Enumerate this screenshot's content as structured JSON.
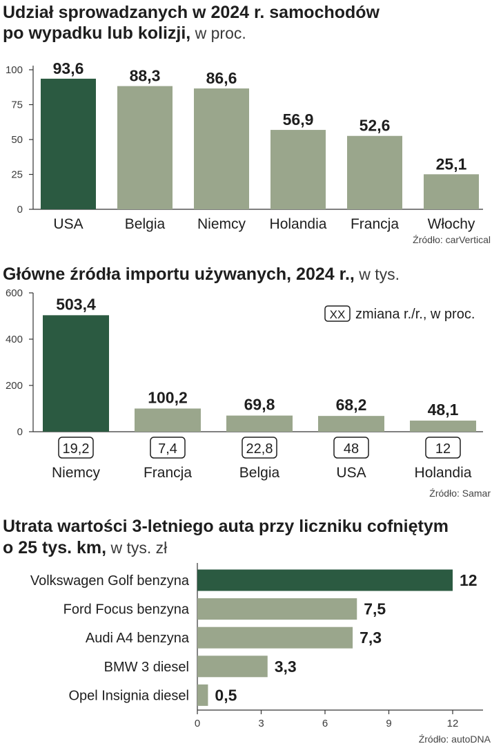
{
  "colors": {
    "highlight": "#2b5a41",
    "bar": "#9aa68c",
    "axis": "#333333"
  },
  "chart_data": [
    {
      "type": "bar",
      "title": "Udział sprowadzanych w 2024 r. samochodów",
      "title_line2": "po wypadku lub kolizji,",
      "unit": " w proc.",
      "categories": [
        "USA",
        "Belgia",
        "Niemcy",
        "Holandia",
        "Francja",
        "Włochy"
      ],
      "values": [
        93.6,
        88.3,
        86.6,
        56.9,
        52.6,
        25.1
      ],
      "value_labels": [
        "93,6",
        "88,3",
        "86,6",
        "56,9",
        "52,6",
        "25,1"
      ],
      "yticks": [
        "0",
        "25",
        "50",
        "75",
        "100"
      ],
      "ylim": [
        0,
        100
      ],
      "highlight_index": 0,
      "source": "Źródło: carVertical"
    },
    {
      "type": "bar",
      "title": "Główne źródła importu używanych, 2024 r.,",
      "unit": " w tys.",
      "legend": "zmiana r./r., w proc.",
      "legend_box": "XX",
      "categories": [
        "Niemcy",
        "Francja",
        "Belgia",
        "USA",
        "Holandia"
      ],
      "values": [
        503.4,
        100.2,
        69.8,
        68.2,
        48.1
      ],
      "value_labels": [
        "503,4",
        "100,2",
        "69,8",
        "68,2",
        "48,1"
      ],
      "changes": [
        "19,2",
        "7,4",
        "22,8",
        "48",
        "12"
      ],
      "yticks": [
        "0",
        "200",
        "400",
        "600"
      ],
      "ylim": [
        0,
        600
      ],
      "highlight_index": 0,
      "source": "Źródło: Samar"
    },
    {
      "type": "bar",
      "orientation": "horizontal",
      "title": "Utrata wartości 3-letniego auta przy liczniku cofniętym",
      "title_line2": "o 25 tys. km,",
      "unit": " w tys. zł",
      "categories": [
        "Volkswagen Golf benzyna",
        "Ford Focus benzyna",
        "Audi A4 benzyna",
        "BMW 3 diesel",
        "Opel Insignia diesel"
      ],
      "values": [
        12,
        7.5,
        7.3,
        3.3,
        0.5
      ],
      "value_labels": [
        "12",
        "7,5",
        "7,3",
        "3,3",
        "0,5"
      ],
      "xticks": [
        "0",
        "3",
        "6",
        "9",
        "12"
      ],
      "xlim": [
        0,
        12
      ],
      "highlight_index": 0,
      "source": "Źródło: autoDNA"
    }
  ]
}
